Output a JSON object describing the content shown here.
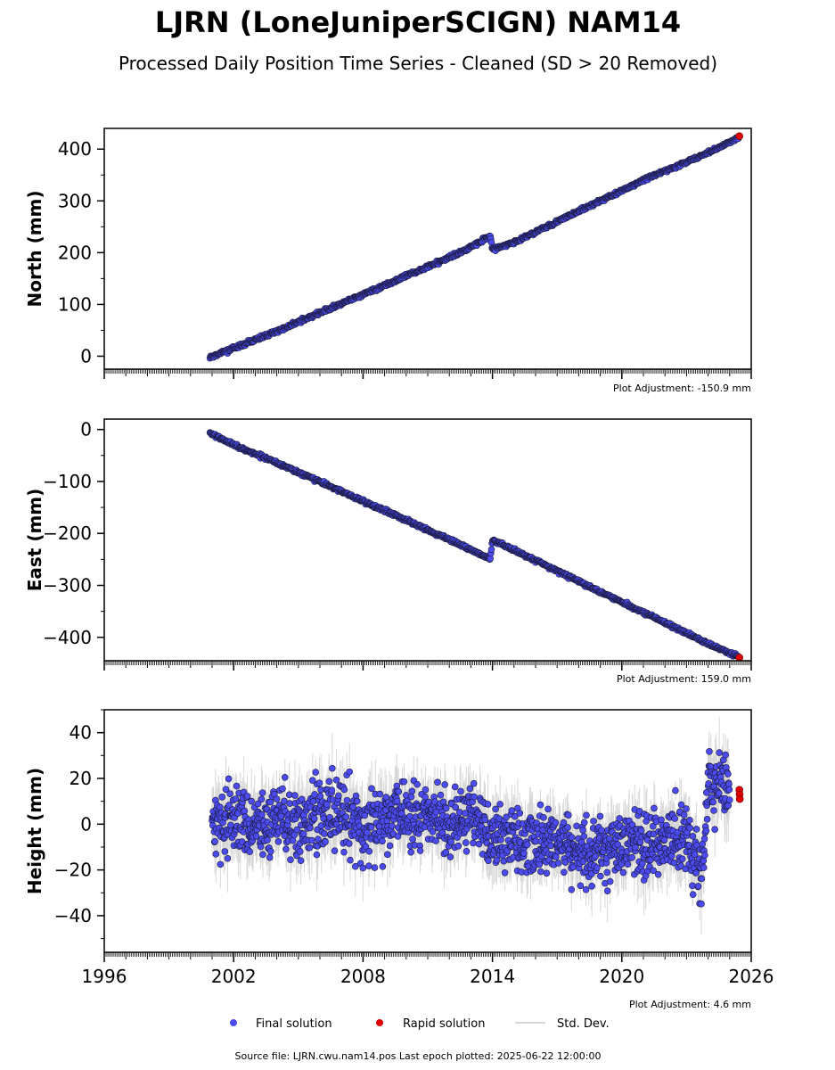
{
  "title": "LJRN (LoneJuniperSCIGN) NAM14",
  "subtitle": "Processed Daily Position Time Series - Cleaned (SD > 20 Removed)",
  "colors": {
    "final": "#4b4bf0",
    "final_edge": "#1a1a3a",
    "rapid": "#e00000",
    "std_dev": "#bdbdbd"
  },
  "chart_data": [
    {
      "type": "scatter",
      "ylabel": "North (mm)",
      "xlim": [
        1996,
        2026
      ],
      "ylim": [
        -25,
        440
      ],
      "yticks": [
        0,
        100,
        200,
        300,
        400
      ],
      "ytick_labels": [
        "0",
        "100",
        "200",
        "300",
        "400"
      ],
      "annotation": "Plot Adjustment: -150.9 mm",
      "series": [
        {
          "name": "Final solution",
          "x": [
            2000.9,
            2001.5,
            2002.5,
            2003.5,
            2004.5,
            2005.5,
            2006.5,
            2007.5,
            2008.5,
            2009.5,
            2010.5,
            2011.5,
            2012.5,
            2013.9,
            2014.0,
            2015.0,
            2016.0,
            2017.0,
            2018.0,
            2019.0,
            2020.0,
            2021.0,
            2022.0,
            2023.0,
            2024.0,
            2025.4
          ],
          "y": [
            -3,
            8,
            23,
            40,
            57,
            75,
            93,
            110,
            128,
            146,
            164,
            182,
            200,
            232,
            205,
            220,
            240,
            260,
            280,
            300,
            320,
            340,
            358,
            375,
            393,
            422
          ]
        },
        {
          "name": "Rapid solution",
          "x": [
            2025.45
          ],
          "y": [
            425
          ]
        }
      ]
    },
    {
      "type": "scatter",
      "ylabel": "East (mm)",
      "xlim": [
        1996,
        2026
      ],
      "ylim": [
        -445,
        20
      ],
      "yticks": [
        0,
        -100,
        -200,
        -300,
        -400
      ],
      "ytick_labels": [
        "0",
        "−100",
        "−200",
        "−300",
        "−400"
      ],
      "annotation": "Plot Adjustment: 159.0 mm",
      "series": [
        {
          "name": "Final solution",
          "x": [
            2000.9,
            2001.5,
            2002.5,
            2003.5,
            2004.5,
            2005.5,
            2006.5,
            2007.5,
            2008.5,
            2009.5,
            2010.5,
            2011.5,
            2012.5,
            2013.9,
            2014.0,
            2015.0,
            2016.0,
            2017.0,
            2018.0,
            2019.0,
            2020.0,
            2021.0,
            2022.0,
            2023.0,
            2024.0,
            2025.4
          ],
          "y": [
            -5,
            -20,
            -38,
            -55,
            -73,
            -92,
            -110,
            -128,
            -147,
            -165,
            -184,
            -203,
            -221,
            -250,
            -213,
            -232,
            -252,
            -272,
            -292,
            -312,
            -332,
            -352,
            -372,
            -392,
            -412,
            -437
          ]
        },
        {
          "name": "Rapid solution",
          "x": [
            2025.45
          ],
          "y": [
            -439
          ]
        }
      ]
    },
    {
      "type": "scatter",
      "ylabel": "Height (mm)",
      "xlim": [
        1996,
        2026
      ],
      "ylim": [
        -56,
        50
      ],
      "yticks": [
        40,
        20,
        0,
        -20,
        -40
      ],
      "ytick_labels": [
        "40",
        "20",
        "0",
        "−20",
        "−40"
      ],
      "xticks": [
        1996,
        2002,
        2008,
        2014,
        2020,
        2026
      ],
      "xtick_labels": [
        "1996",
        "2002",
        "2008",
        "2014",
        "2020",
        "2026"
      ],
      "annotation": "Plot Adjustment: 4.6 mm",
      "series": [
        {
          "name": "Final solution",
          "x": [
            2001,
            2002,
            2003,
            2004,
            2005,
            2006,
            2007,
            2008,
            2009,
            2010,
            2011,
            2012,
            2013,
            2014,
            2015,
            2016,
            2017,
            2018,
            2019,
            2020,
            2021,
            2022,
            2023,
            2023.7,
            2024,
            2025
          ],
          "y": [
            0,
            2,
            -1,
            3,
            -2,
            5,
            4,
            -3,
            2,
            6,
            3,
            1,
            5,
            -7,
            -6,
            -9,
            -8,
            -11,
            -10,
            -9,
            -10,
            -6,
            -5,
            -25,
            18,
            17
          ]
        },
        {
          "name": "Rapid solution",
          "x": [
            2025.45,
            2025.46,
            2025.47
          ],
          "y": [
            15,
            13,
            11
          ]
        }
      ]
    }
  ],
  "legend": {
    "final": "Final solution",
    "rapid": "Rapid solution",
    "std": "Std. Dev."
  },
  "footer": "Source file: LJRN.cwu.nam14.pos  Last epoch plotted: 2025-06-22 12:00:00"
}
